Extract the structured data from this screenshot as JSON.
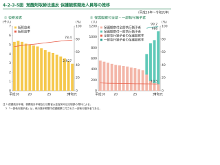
{
  "header": {
    "figure": "4-2-3-5図",
    "title": "覚醒剤取締法違反 保護観察開始人員等の推移",
    "period": "（平成16年～令和元年）"
  },
  "chart_data": [
    {
      "type": "bar",
      "title": "① 仮釈放者",
      "ylabel": "(千人)",
      "y2label": "(%)",
      "categories": [
        "平成16",
        null,
        null,
        null,
        "20",
        null,
        null,
        null,
        null,
        "25",
        null,
        null,
        null,
        null,
        "30",
        "令和元"
      ],
      "ylim": [
        0,
        7
      ],
      "yticks": [
        0,
        1,
        2,
        3,
        4,
        5,
        6,
        7
      ],
      "y2lim": [
        0,
        100
      ],
      "y2ticks": [
        0,
        20,
        40,
        60,
        80,
        100
      ],
      "series": [
        {
          "name": "仮釈放者",
          "color": "#f5c84c",
          "values": [
            5.3,
            5.4,
            5.3,
            5.1,
            5.0,
            4.9,
            4.8,
            4.6,
            4.4,
            4.2,
            4.1,
            3.9,
            3.7,
            3.5,
            3.2,
            2.927
          ],
          "end_label": "2,927"
        },
        {
          "name": "仮釈放率",
          "color": "#e8604c",
          "axis": "y2",
          "values": [
            68.5,
            69.2,
            70.1,
            70.8,
            71.5,
            72.0,
            72.6,
            73.4,
            74.1,
            74.8,
            75.5,
            76.2,
            76.9,
            77.5,
            78.0,
            78.4
          ],
          "end_label": "78.4"
        }
      ]
    },
    {
      "type": "bar",
      "title": "② 保護観察付全部・一部執行猶予者",
      "ylabel": "(人)",
      "y2label": "(%)",
      "categories": [
        "平成16",
        null,
        null,
        null,
        "20",
        null,
        null,
        null,
        null,
        "25",
        null,
        null,
        null,
        null,
        "30",
        "令和元"
      ],
      "ylim": [
        0,
        1200
      ],
      "yticks": [
        0,
        200,
        400,
        600,
        800,
        1000,
        1200
      ],
      "y2lim": [
        0,
        100
      ],
      "y2ticks": [
        0,
        20,
        40,
        60,
        80,
        100
      ],
      "series": [
        {
          "name": "保護観察付全部執行猶予者",
          "color": "#f3b6a8",
          "values": [
            560,
            540,
            520,
            500,
            480,
            470,
            460,
            450,
            430,
            420,
            400,
            380,
            300,
            180,
            140,
            120
          ]
        },
        {
          "name": "保護観察付一部執行猶予者",
          "color": "#5fc9b8",
          "values": [
            null,
            null,
            null,
            null,
            null,
            null,
            null,
            null,
            null,
            null,
            null,
            null,
            380,
            700,
            800,
            986
          ],
          "end_label": "986"
        },
        {
          "name": "全部執行猶予者の保護観察率",
          "color": "#e8604c",
          "axis": "y2",
          "values": [
            12.1,
            11.8,
            11.6,
            11.5,
            11.4,
            11.3,
            11.2,
            11.0,
            10.9,
            10.8,
            10.8,
            10.7,
            10.6,
            10.6,
            10.5,
            10.5
          ],
          "end_label": "10.5"
        },
        {
          "name": "一部執行猶予者の保護観察率",
          "color": "#2a9d8f",
          "axis": "y2",
          "values": [
            null,
            null,
            null,
            null,
            null,
            null,
            null,
            null,
            null,
            null,
            null,
            null,
            96.5,
            98.4,
            98.8,
            99.2
          ],
          "end_label": "99.2"
        }
      ]
    }
  ],
  "notes": [
    "注 1 保護統計年報，検察統計年報及び法務省大臣官房司法法制部の資料による。",
    "2 「一部執行猶予者」は，執行猶予期間中保護観察に付された一部執行猶予者である。"
  ]
}
